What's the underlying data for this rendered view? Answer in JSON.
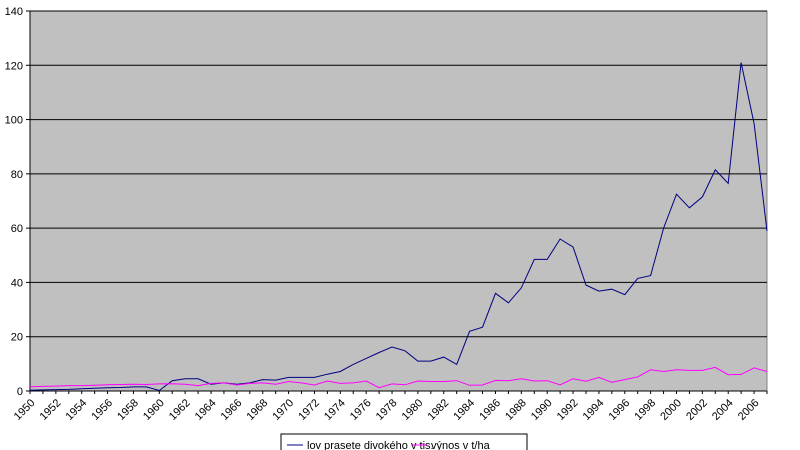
{
  "chart_data": {
    "type": "line",
    "title": "",
    "xlabel": "",
    "ylabel": "",
    "ylim": [
      0,
      140
    ],
    "yticks": [
      0,
      20,
      40,
      60,
      80,
      100,
      120,
      140
    ],
    "xlim": [
      1950,
      2007
    ],
    "xticks": [
      1950,
      1952,
      1954,
      1956,
      1958,
      1960,
      1962,
      1964,
      1966,
      1968,
      1970,
      1972,
      1974,
      1976,
      1978,
      1980,
      1982,
      1984,
      1986,
      1988,
      1990,
      1992,
      1994,
      1996,
      1998,
      2000,
      2002,
      2004,
      2006
    ],
    "grid": "horizontal",
    "plot_background": "#c0c0c0",
    "legend_position": "bottom",
    "x": [
      1950,
      1951,
      1952,
      1953,
      1954,
      1955,
      1956,
      1957,
      1958,
      1959,
      1960,
      1961,
      1962,
      1963,
      1964,
      1965,
      1966,
      1967,
      1968,
      1969,
      1970,
      1971,
      1972,
      1973,
      1974,
      1975,
      1976,
      1977,
      1978,
      1979,
      1980,
      1981,
      1982,
      1983,
      1984,
      1985,
      1986,
      1987,
      1988,
      1989,
      1990,
      1991,
      1992,
      1993,
      1994,
      1995,
      1996,
      1997,
      1998,
      1999,
      2000,
      2001,
      2002,
      2003,
      2004,
      2005,
      2006,
      2007
    ],
    "series": [
      {
        "name": "lov prasete divokého v tis.",
        "color": "#000080",
        "values": [
          0.3,
          0.4,
          0.5,
          0.6,
          0.8,
          1.0,
          1.2,
          1.3,
          1.5,
          1.5,
          0.2,
          3.8,
          4.5,
          4.5,
          2.5,
          3.0,
          2.5,
          3.0,
          4.2,
          4.0,
          5.0,
          5.0,
          5.0,
          6.2,
          7.2,
          9.8,
          12.0,
          14.2,
          16.2,
          14.8,
          11.0,
          11.0,
          12.5,
          9.8,
          22.0,
          23.5,
          36.0,
          32.5,
          38.0,
          48.5,
          48.5,
          56.0,
          53.0,
          39.0,
          36.8,
          37.5,
          35.5,
          41.5,
          42.5,
          60.0,
          72.5,
          67.5,
          71.5,
          81.5,
          76.5,
          121.0,
          98.5,
          59.0
        ]
      },
      {
        "name": "výnos v t/ha",
        "color": "#ff00ff",
        "values": [
          1.6,
          1.7,
          1.8,
          2.0,
          2.0,
          2.1,
          2.3,
          2.4,
          2.5,
          2.4,
          2.6,
          2.7,
          2.5,
          2.0,
          2.8,
          3.0,
          2.2,
          2.8,
          3.0,
          2.5,
          3.5,
          3.0,
          2.2,
          3.7,
          2.8,
          3.0,
          3.7,
          1.2,
          2.6,
          2.3,
          3.7,
          3.5,
          3.5,
          3.8,
          2.1,
          2.2,
          3.9,
          3.8,
          4.5,
          3.7,
          3.8,
          2.3,
          4.5,
          3.6,
          5.0,
          3.2,
          4.2,
          5.2,
          7.8,
          7.2,
          7.8,
          7.6,
          7.6,
          8.7,
          6.0,
          6.1,
          8.5,
          7.2
        ]
      }
    ]
  }
}
